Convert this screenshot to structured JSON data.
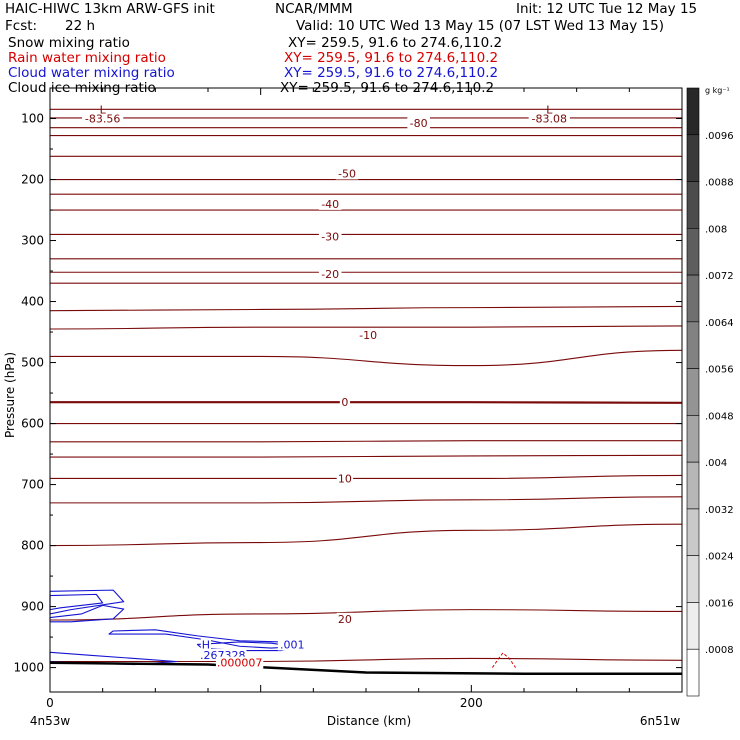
{
  "header": {
    "line1_left": "HAIC-HIWC 13km ARW-GFS init",
    "line1_center": "NCAR/MMM",
    "line1_right": "Init: 12 UTC Tue 12 May 15",
    "line2_left": "Fcst:",
    "line2_fcst": "22 h",
    "line2_right": "Valid: 10 UTC Wed 13 May 15 (07 LST Wed 13 May 15)",
    "fields": [
      {
        "name": "Snow mixing ratio",
        "xy": "XY= 259.5, 91.6 to 274.6,110.2",
        "color": "#000000"
      },
      {
        "name": "Rain water mixing ratio",
        "xy": "XY= 259.5, 91.6 to 274.6,110.2",
        "color": "#d40000"
      },
      {
        "name": "Cloud water mixing ratio",
        "xy": "XY= 259.5, 91.6 to 274.6,110.2",
        "color": "#1414d2"
      },
      {
        "name": "Cloud ice mixing ratio",
        "xy": "XY= 259.5, 91.6 to 274.6,110.2",
        "color": "#000000"
      }
    ]
  },
  "axes": {
    "ylabel": "Pressure (hPa)",
    "xlabel": "Distance (km)",
    "x_left_label": "4n53w",
    "x_right_label": "6n51w",
    "colorbar_unit": "g kg⁻¹"
  },
  "colors": {
    "temperature": "#7a0a0a",
    "cloud_water": "#1414d2",
    "rain_water": "#d40000",
    "terrain": "#000000"
  },
  "chart_data": {
    "type": "contour",
    "x_unit": "km",
    "xlim": [
      0,
      300
    ],
    "ylim": [
      1040,
      50
    ],
    "xticks": [
      0,
      200
    ],
    "yticks": [
      100,
      200,
      300,
      400,
      500,
      600,
      700,
      800,
      900,
      1000
    ],
    "temperature_labels": [
      {
        "text": "-83.56",
        "x": 25,
        "p": 100
      },
      {
        "text": "-80",
        "x": 175,
        "p": 107
      },
      {
        "text": "-83.08",
        "x": 237,
        "p": 100
      },
      {
        "text": "-50",
        "x": 141,
        "p": 190
      },
      {
        "text": "-40",
        "x": 133,
        "p": 240
      },
      {
        "text": "-30",
        "x": 133,
        "p": 293
      },
      {
        "text": "-20",
        "x": 133,
        "p": 355
      },
      {
        "text": "-10",
        "x": 151,
        "p": 455
      },
      {
        "text": "0",
        "x": 140,
        "p": 565
      },
      {
        "text": "10",
        "x": 140,
        "p": 690
      },
      {
        "text": "20",
        "x": 140,
        "p": 920
      }
    ],
    "low_markers": [
      {
        "text": "L",
        "x": 25,
        "p": 85
      },
      {
        "text": "L",
        "x": 237,
        "p": 85
      }
    ],
    "temperature_isotherms": [
      {
        "p": [
          85,
          85,
          85,
          85
        ]
      },
      {
        "p": [
          99,
          99,
          99,
          99
        ]
      },
      {
        "p": [
          115,
          115,
          115,
          115
        ]
      },
      {
        "p": [
          128,
          128,
          128,
          128
        ]
      },
      {
        "p": [
          162,
          162,
          162,
          162
        ]
      },
      {
        "p": [
          200,
          200,
          200,
          200
        ]
      },
      {
        "p": [
          224,
          224,
          224,
          224
        ]
      },
      {
        "p": [
          250,
          250,
          250,
          250
        ]
      },
      {
        "p": [
          290,
          290,
          290,
          290
        ]
      },
      {
        "p": [
          330,
          330,
          330,
          330
        ]
      },
      {
        "p": [
          352,
          352,
          352,
          352
        ]
      },
      {
        "p": [
          370,
          370,
          370,
          370
        ]
      },
      {
        "p": [
          415,
          413,
          410,
          408
        ]
      },
      {
        "p": [
          445,
          442,
          442,
          440
        ]
      },
      {
        "p": [
          490,
          490,
          505,
          480
        ]
      },
      {
        "p": [
          565,
          565,
          565,
          566
        ]
      },
      {
        "p": [
          600,
          600,
          600,
          600
        ]
      },
      {
        "p": [
          630,
          630,
          628,
          628
        ]
      },
      {
        "p": [
          655,
          655,
          653,
          652
        ]
      },
      {
        "p": [
          690,
          690,
          690,
          685
        ]
      },
      {
        "p": [
          730,
          730,
          725,
          720
        ]
      },
      {
        "p": [
          800,
          795,
          775,
          765
        ]
      },
      {
        "p": [
          922,
          912,
          905,
          908
        ]
      },
      {
        "p": [
          990,
          990,
          985,
          988
        ]
      }
    ],
    "cloud_water_labels": [
      {
        "text": "H",
        "x": 74,
        "p": 962
      },
      {
        "text": ".267328",
        "x": 82,
        "p": 979
      },
      {
        "text": ".001",
        "x": 115,
        "p": 962
      }
    ],
    "rain_water_labels": [
      {
        "text": ".000007",
        "x": 90,
        "p": 992
      }
    ],
    "terrain_pressure": [
      992,
      995,
      1008,
      1010,
      1010
    ],
    "colorbar_levels": [
      ".0096",
      ".0088",
      ".008",
      ".0072",
      ".0064",
      ".0056",
      ".0048",
      ".004",
      ".0032",
      ".0024",
      ".0016",
      ".0008"
    ]
  }
}
